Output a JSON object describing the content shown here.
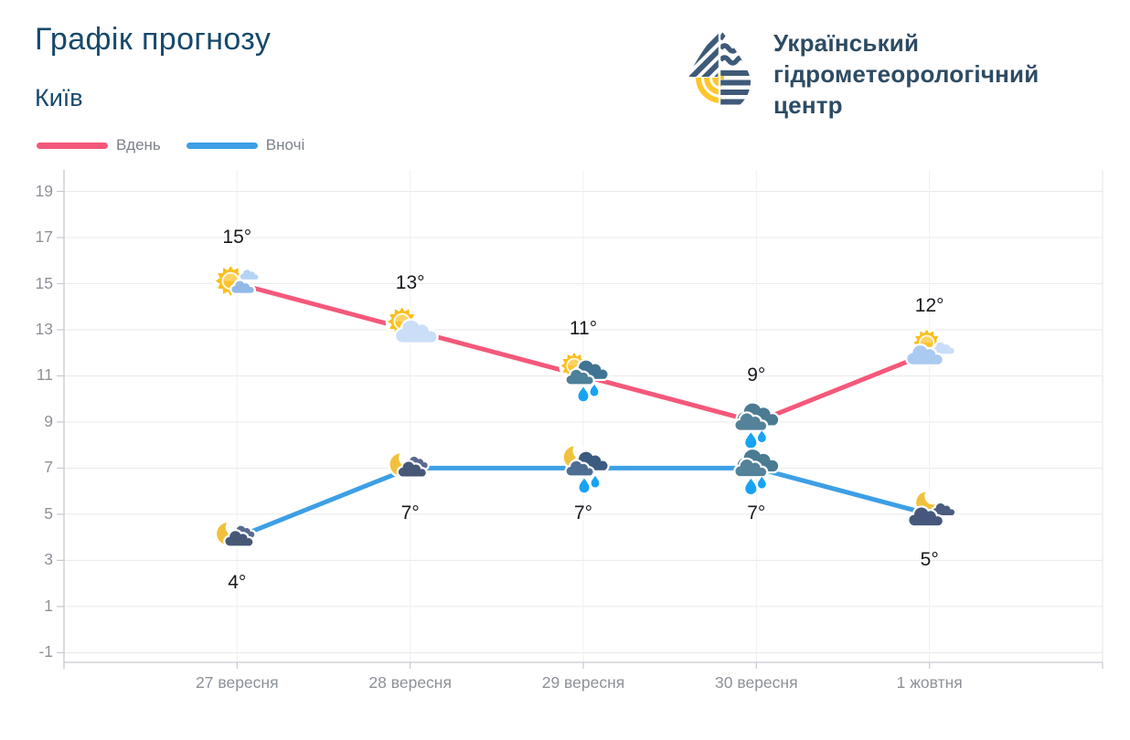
{
  "header": {
    "title": "Графік прогнозу",
    "subtitle": "Київ"
  },
  "logo": {
    "org_lines": [
      "Український",
      "гідрометеорологічний",
      "центр"
    ],
    "drop_blue": "#3e5a78",
    "drop_yellow": "#ffc62b"
  },
  "legend": {
    "items": [
      {
        "label": "Вдень",
        "color": "#f4587a"
      },
      {
        "label": "Вночі",
        "color": "#3d9fe5"
      }
    ]
  },
  "chart_data": {
    "type": "line",
    "title": "Графік прогнозу",
    "subtitle": "Київ",
    "categories": [
      "27 вересня",
      "28 вересня",
      "29 вересня",
      "30 вересня",
      "1 жовтня"
    ],
    "series": [
      {
        "name": "Вдень",
        "color": "#f4587a",
        "values": [
          15,
          13,
          11,
          9,
          12
        ],
        "point_labels": [
          "15°",
          "13°",
          "11°",
          "9°",
          "12°"
        ],
        "icons": [
          "sun-small-clouds-icon",
          "sun-cloud-icon",
          "sun-rain-icon",
          "rain-icon",
          "sun-clouds-icon"
        ]
      },
      {
        "name": "Вночі",
        "color": "#3d9fe5",
        "values": [
          4,
          7,
          7,
          7,
          5
        ],
        "point_labels": [
          "4°",
          "7°",
          "7°",
          "7°",
          "5°"
        ],
        "icons": [
          "moon-cloud-icon",
          "moon-cloud-icon",
          "moon-rain-icon",
          "rain-icon",
          "moon-clouds-icon"
        ]
      }
    ],
    "y_ticks": [
      19,
      17,
      15,
      13,
      11,
      9,
      7,
      5,
      3,
      1,
      -1
    ],
    "ylim": [
      -1.42,
      19.93
    ],
    "grid": true,
    "legend_position": "top-left"
  }
}
